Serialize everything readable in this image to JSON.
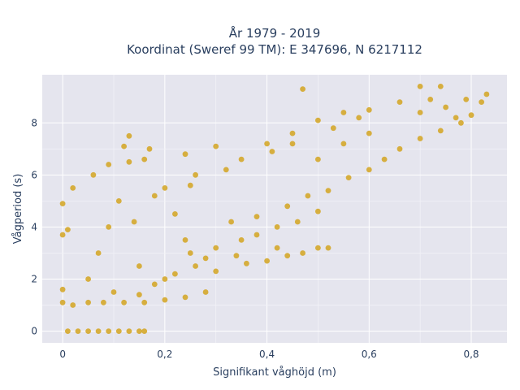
{
  "chart_data": {
    "type": "scatter",
    "title_line1": "År 1979 - 2019",
    "title_line2": "Koordinat (Sweref 99 TM): E 347696, N 6217112",
    "xlabel": "Signifikant våghöjd (m)",
    "ylabel": "Vågperiod (s)",
    "xlim": [
      -0.04,
      0.87
    ],
    "ylim": [
      -0.45,
      9.85
    ],
    "xticks": [
      0,
      0.2,
      0.4,
      0.6,
      0.8
    ],
    "xtick_labels": [
      "0",
      "0,2",
      "0,4",
      "0,6",
      "0,8"
    ],
    "yticks": [
      0,
      2,
      4,
      6,
      8
    ],
    "ytick_labels": [
      "0",
      "2",
      "4",
      "6",
      "8"
    ],
    "grid": true,
    "marker_color": "#d4a520",
    "plot_background": "#e5e5ee",
    "series": [
      {
        "points": [
          [
            0.01,
            0
          ],
          [
            0.03,
            0
          ],
          [
            0.05,
            0
          ],
          [
            0.07,
            0
          ],
          [
            0.09,
            0
          ],
          [
            0.11,
            0
          ],
          [
            0.13,
            0
          ],
          [
            0.15,
            0
          ],
          [
            0.16,
            0
          ],
          [
            0.0,
            1.1
          ],
          [
            0.0,
            1.6
          ],
          [
            0.0,
            3.7
          ],
          [
            0.0,
            4.9
          ],
          [
            0.01,
            3.9
          ],
          [
            0.02,
            5.5
          ],
          [
            0.02,
            1.0
          ],
          [
            0.05,
            1.1
          ],
          [
            0.08,
            1.1
          ],
          [
            0.12,
            1.1
          ],
          [
            0.16,
            1.1
          ],
          [
            0.2,
            1.2
          ],
          [
            0.24,
            1.3
          ],
          [
            0.28,
            1.5
          ],
          [
            0.05,
            2.0
          ],
          [
            0.07,
            3.0
          ],
          [
            0.09,
            4.0
          ],
          [
            0.11,
            5.0
          ],
          [
            0.06,
            6.0
          ],
          [
            0.09,
            6.4
          ],
          [
            0.13,
            6.5
          ],
          [
            0.12,
            7.1
          ],
          [
            0.13,
            7.5
          ],
          [
            0.16,
            6.6
          ],
          [
            0.17,
            7.0
          ],
          [
            0.24,
            6.8
          ],
          [
            0.3,
            7.1
          ],
          [
            0.25,
            5.6
          ],
          [
            0.35,
            6.6
          ],
          [
            0.4,
            7.2
          ],
          [
            0.45,
            7.6
          ],
          [
            0.5,
            8.1
          ],
          [
            0.55,
            8.4
          ],
          [
            0.6,
            8.5
          ],
          [
            0.47,
            9.3
          ],
          [
            0.66,
            8.8
          ],
          [
            0.7,
            8.4
          ],
          [
            0.75,
            8.6
          ],
          [
            0.79,
            8.9
          ],
          [
            0.83,
            9.1
          ],
          [
            0.82,
            8.8
          ],
          [
            0.7,
            9.4
          ],
          [
            0.74,
            9.4
          ],
          [
            0.72,
            8.9
          ],
          [
            0.77,
            8.2
          ],
          [
            0.2,
            2.0
          ],
          [
            0.3,
            2.3
          ],
          [
            0.36,
            2.6
          ],
          [
            0.4,
            2.7
          ],
          [
            0.44,
            2.9
          ],
          [
            0.47,
            3.0
          ],
          [
            0.5,
            3.2
          ],
          [
            0.52,
            3.2
          ],
          [
            0.25,
            3.0
          ],
          [
            0.3,
            3.2
          ],
          [
            0.35,
            3.5
          ],
          [
            0.38,
            3.7
          ],
          [
            0.42,
            4.0
          ],
          [
            0.46,
            4.2
          ],
          [
            0.5,
            4.6
          ],
          [
            0.52,
            5.4
          ],
          [
            0.56,
            5.9
          ],
          [
            0.6,
            6.2
          ],
          [
            0.63,
            6.6
          ],
          [
            0.66,
            7.0
          ],
          [
            0.7,
            7.4
          ],
          [
            0.74,
            7.7
          ],
          [
            0.78,
            8.0
          ],
          [
            0.8,
            8.3
          ],
          [
            0.38,
            4.4
          ],
          [
            0.44,
            4.8
          ],
          [
            0.48,
            5.2
          ],
          [
            0.6,
            7.6
          ],
          [
            0.5,
            6.6
          ],
          [
            0.55,
            7.2
          ],
          [
            0.2,
            5.5
          ],
          [
            0.22,
            4.5
          ],
          [
            0.24,
            3.5
          ],
          [
            0.15,
            2.5
          ],
          [
            0.1,
            1.5
          ],
          [
            0.18,
            1.8
          ],
          [
            0.28,
            2.8
          ],
          [
            0.33,
            4.2
          ],
          [
            0.14,
            4.2
          ],
          [
            0.18,
            5.2
          ],
          [
            0.26,
            6.0
          ],
          [
            0.32,
            6.2
          ],
          [
            0.41,
            6.9
          ],
          [
            0.45,
            7.2
          ],
          [
            0.53,
            7.8
          ],
          [
            0.58,
            8.2
          ],
          [
            0.42,
            3.2
          ],
          [
            0.34,
            2.9
          ],
          [
            0.26,
            2.5
          ],
          [
            0.22,
            2.2
          ],
          [
            0.15,
            1.4
          ]
        ]
      }
    ]
  }
}
